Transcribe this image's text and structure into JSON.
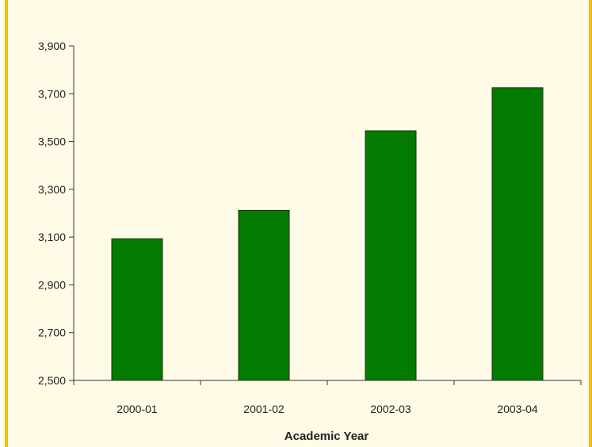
{
  "colors": {
    "bar_fill": "#037a00",
    "bar_stroke": "#1e2e1a",
    "background": "#fffbe6",
    "frame_border": "#f1bb16",
    "axis": "#333333",
    "text": "#222222"
  },
  "chart_data": {
    "type": "bar",
    "title": "",
    "xlabel": "Academic Year",
    "ylabel": "",
    "categories": [
      "2000-01",
      "2001-02",
      "2002-03",
      "2003-04"
    ],
    "values": [
      3093,
      3212,
      3545,
      3725
    ],
    "ylim": [
      2500,
      3900
    ],
    "yticks": [
      2500,
      2700,
      2900,
      3100,
      3300,
      3500,
      3700,
      3900
    ],
    "ytick_labels": [
      "2,500",
      "2,700",
      "2,900",
      "3,100",
      "3,300",
      "3,500",
      "3,700",
      "3,900"
    ],
    "grid": false,
    "legend": "none"
  }
}
